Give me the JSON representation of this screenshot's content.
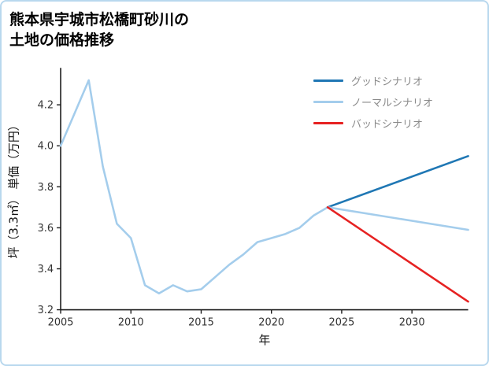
{
  "title": {
    "line1": "熊本県宇城市松橋町砂川の",
    "line2": "土地の価格推移"
  },
  "legend": {
    "items": [
      {
        "label": "グッドシナリオ",
        "color": "#1f77b4"
      },
      {
        "label": "ノーマルシナリオ",
        "color": "#a4cdec"
      },
      {
        "label": "バッドシナリオ",
        "color": "#e62222"
      }
    ]
  },
  "chart_data": {
    "type": "line",
    "title": "熊本県宇城市松橋町砂川の 土地の価格推移",
    "xlabel": "年",
    "ylabel": "坪（3.3㎡） 単価（万円）",
    "x_range": [
      2005,
      2034
    ],
    "y_range": [
      3.2,
      4.38
    ],
    "x_tick_values": [
      2005,
      2010,
      2015,
      2020,
      2025,
      2030
    ],
    "x_ticks": [
      "2005",
      "2010",
      "2015",
      "2020",
      "2025",
      "2030"
    ],
    "y_tick_values": [
      3.2,
      3.4,
      3.6,
      3.8,
      4.0,
      4.2
    ],
    "y_ticks": [
      "3.2",
      "3.4",
      "3.6",
      "3.8",
      "4.0",
      "4.2"
    ],
    "grid": false,
    "legend_position": "upper right",
    "series": [
      {
        "name": "history",
        "in_legend": false,
        "color": "#a4cdec",
        "x": [
          2005,
          2006,
          2007,
          2008,
          2009,
          2010,
          2011,
          2012,
          2013,
          2014,
          2015,
          2016,
          2017,
          2018,
          2019,
          2020,
          2021,
          2022,
          2023,
          2024
        ],
        "values": [
          4.0,
          4.16,
          4.32,
          3.9,
          3.62,
          3.55,
          3.32,
          3.28,
          3.32,
          3.29,
          3.3,
          3.36,
          3.42,
          3.47,
          3.53,
          3.55,
          3.57,
          3.6,
          3.66,
          3.7
        ]
      },
      {
        "name": "グッドシナリオ",
        "in_legend": true,
        "color": "#1f77b4",
        "x": [
          2024,
          2034
        ],
        "values": [
          3.7,
          3.95
        ]
      },
      {
        "name": "ノーマルシナリオ",
        "in_legend": true,
        "color": "#a4cdec",
        "x": [
          2024,
          2034
        ],
        "values": [
          3.7,
          3.59
        ]
      },
      {
        "name": "バッドシナリオ",
        "in_legend": true,
        "color": "#e62222",
        "x": [
          2024,
          2034
        ],
        "values": [
          3.7,
          3.24
        ]
      }
    ]
  }
}
